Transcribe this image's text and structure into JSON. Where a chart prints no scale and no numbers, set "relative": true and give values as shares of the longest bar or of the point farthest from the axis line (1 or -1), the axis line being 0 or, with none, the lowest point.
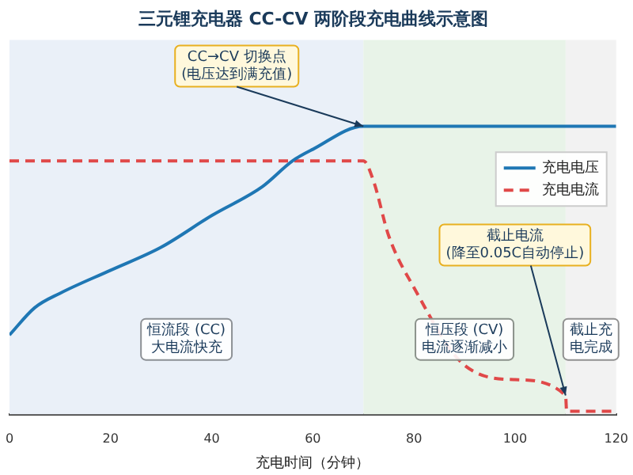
{
  "chart_data": {
    "type": "line",
    "title": "三元锂充电器 CC-CV 两阶段充电曲线示意图",
    "xlabel": "充电时间（分钟）",
    "relative": true,
    "xlim": [
      0,
      120
    ],
    "xticks": [
      0,
      20,
      40,
      60,
      80,
      100,
      120
    ],
    "grid": false,
    "legend": "right",
    "marker": "none",
    "series": [
      {
        "name": "充电电压",
        "color": "#1f77b4",
        "line_style": "solid",
        "x": [
          0,
          5,
          10,
          20,
          30,
          40,
          50,
          56,
          60,
          70,
          80,
          90,
          100,
          110,
          120
        ],
        "values": [
          0.275,
          0.37,
          0.42,
          0.5,
          0.58,
          0.69,
          0.79,
          0.88,
          0.92,
          1,
          1,
          1,
          1,
          1,
          1
        ]
      },
      {
        "name": "充电电流",
        "color": "#e04848",
        "line_style": "dashed",
        "x": [
          0,
          20,
          40,
          60,
          70,
          72,
          75,
          80,
          90,
          100,
          110,
          110.2,
          120
        ],
        "values": [
          0.88,
          0.88,
          0.88,
          0.88,
          0.88,
          0.81,
          0.62,
          0.44,
          0.17,
          0.12,
          0.065,
          0.01,
          0.01
        ]
      }
    ],
    "bands": [
      {
        "axis": "x",
        "from": 0,
        "to": 70,
        "label": "恒流段 (CC)大电流快充",
        "color": "#eaf0f8"
      },
      {
        "axis": "x",
        "from": 70,
        "to": 110,
        "label": "恒压段 (CV)电流逐渐减小",
        "color": "#e8f3e8"
      },
      {
        "axis": "x",
        "from": 110,
        "to": 120,
        "label": "截止充电完成",
        "color": "#f2f2f2"
      }
    ],
    "annotations": [
      {
        "text": "CC→CV 切换点(电压达到满充值)",
        "x": 70,
        "y": 1
      },
      {
        "text": "截止电流(降至0.05C自动停止)",
        "x": 110,
        "y": 0.065
      }
    ]
  }
}
